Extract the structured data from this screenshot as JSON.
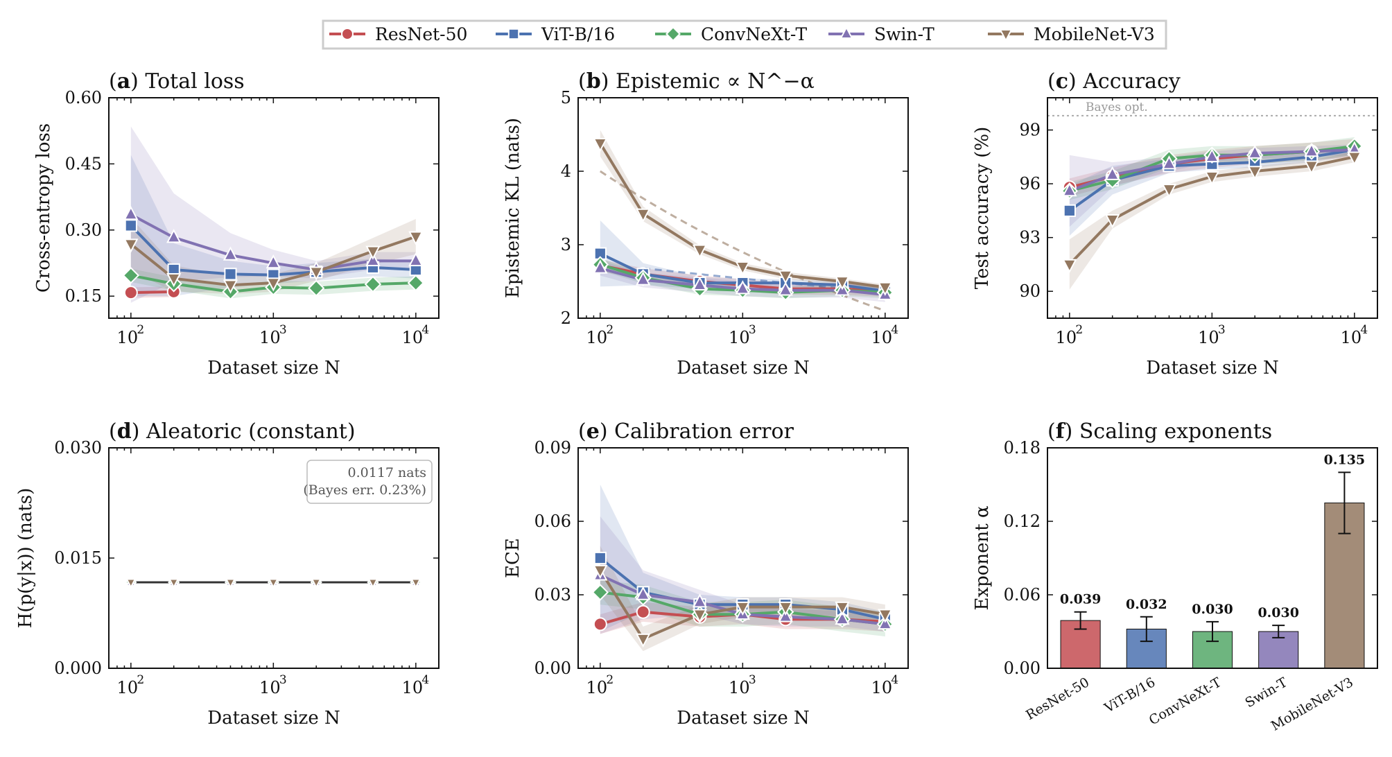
{
  "legend": [
    {
      "name": "ResNet-50",
      "color": "#c44e52",
      "marker": "circle"
    },
    {
      "name": "ViT-B/16",
      "color": "#4c72b0",
      "marker": "square"
    },
    {
      "name": "ConvNeXt-T",
      "color": "#55a868",
      "marker": "diamond"
    },
    {
      "name": "Swin-T",
      "color": "#8172b2",
      "marker": "triangle-up"
    },
    {
      "name": "MobileNet-V3",
      "color": "#937860",
      "marker": "triangle-down"
    }
  ],
  "chart_data": [
    {
      "id": "a",
      "type": "line",
      "letter": "a",
      "title": "Total loss",
      "xlabel": "Dataset size N",
      "ylabel": "Cross-entropy loss",
      "xscale": "log",
      "xlim": [
        70,
        14500
      ],
      "ylim": [
        0.1,
        0.6
      ],
      "yticks": [
        0.15,
        0.3,
        0.45,
        0.6
      ],
      "yticklabels": [
        "0.15",
        "0.30",
        "0.45",
        "0.60"
      ],
      "x": [
        100,
        200,
        500,
        1000,
        2000,
        5000,
        10000
      ],
      "series": [
        {
          "name": "ResNet-50",
          "values": [
            0.158,
            0.16,
            null,
            null,
            null,
            null,
            null
          ],
          "band": 0.012
        },
        {
          "name": "ViT-B/16",
          "values": [
            0.31,
            0.21,
            0.2,
            0.198,
            0.205,
            0.215,
            0.21
          ],
          "band": [
            0.16,
            0.06,
            0.03,
            0.02,
            0.02,
            0.02,
            0.02
          ]
        },
        {
          "name": "ConvNeXt-T",
          "values": [
            0.197,
            0.178,
            0.16,
            0.17,
            0.168,
            0.177,
            0.18
          ],
          "band": 0.015
        },
        {
          "name": "Swin-T",
          "values": [
            0.335,
            0.283,
            0.243,
            0.225,
            0.21,
            0.23,
            0.23
          ],
          "band": [
            0.2,
            0.1,
            0.05,
            0.03,
            0.02,
            0.02,
            0.02
          ]
        },
        {
          "name": "MobileNet-V3",
          "values": [
            0.268,
            0.19,
            0.175,
            0.18,
            0.205,
            0.252,
            0.285
          ],
          "band": [
            0.06,
            0.03,
            0.02,
            0.02,
            0.02,
            0.03,
            0.04
          ]
        }
      ]
    },
    {
      "id": "b",
      "type": "line",
      "letter": "b",
      "title": "Epistemic ∝ N^−α",
      "xlabel": "Dataset size N",
      "ylabel": "Epistemic KL (nats)",
      "xscale": "log",
      "xlim": [
        70,
        14500
      ],
      "ylim": [
        2,
        5
      ],
      "yticks": [
        2,
        3,
        4,
        5
      ],
      "yticklabels": [
        "2",
        "3",
        "4",
        "5"
      ],
      "x": [
        100,
        200,
        500,
        1000,
        2000,
        5000,
        10000
      ],
      "series": [
        {
          "name": "ResNet-50",
          "values": [
            2.72,
            2.6,
            2.5,
            2.45,
            2.4,
            2.4,
            2.37
          ],
          "band": 0.08
        },
        {
          "name": "ViT-B/16",
          "values": [
            2.88,
            2.6,
            2.48,
            2.48,
            2.48,
            2.45,
            2.37
          ],
          "band": [
            0.45,
            0.15,
            0.08,
            0.06,
            0.05,
            0.05,
            0.05
          ]
        },
        {
          "name": "ConvNeXt-T",
          "values": [
            2.73,
            2.55,
            2.4,
            2.38,
            2.35,
            2.38,
            2.35
          ],
          "band": 0.08
        },
        {
          "name": "Swin-T",
          "values": [
            2.68,
            2.52,
            2.45,
            2.4,
            2.38,
            2.38,
            2.32
          ],
          "band": 0.1
        },
        {
          "name": "MobileNet-V3",
          "values": [
            4.38,
            3.42,
            2.93,
            2.7,
            2.58,
            2.5,
            2.42
          ],
          "band": [
            0.18,
            0.1,
            0.06,
            0.05,
            0.05,
            0.04,
            0.04
          ]
        }
      ],
      "fits": [
        {
          "name": "MobileNet-V3 fit",
          "x": [
            100,
            10000
          ],
          "values": [
            4.0,
            2.1
          ]
        },
        {
          "name": "ViT-B/16 fit",
          "x": [
            200,
            10000
          ],
          "values": [
            2.68,
            2.35
          ]
        }
      ]
    },
    {
      "id": "c",
      "type": "line",
      "letter": "c",
      "title": "Accuracy",
      "xlabel": "Dataset size N",
      "ylabel": "Test accuracy (%)",
      "xscale": "log",
      "xlim": [
        70,
        14500
      ],
      "ylim": [
        88.5,
        100.8
      ],
      "yticks": [
        90,
        93,
        96,
        99
      ],
      "yticklabels": [
        "90",
        "93",
        "96",
        "99"
      ],
      "x": [
        100,
        200,
        500,
        1000,
        2000,
        5000,
        10000
      ],
      "series": [
        {
          "name": "ResNet-50",
          "values": [
            95.8,
            96.4,
            97.1,
            97.4,
            97.6,
            97.8,
            98.0
          ],
          "band": 0.5
        },
        {
          "name": "ViT-B/16",
          "values": [
            94.5,
            96.2,
            97.0,
            97.1,
            97.2,
            97.5,
            97.9
          ],
          "band": [
            1.4,
            0.8,
            0.4,
            0.3,
            0.3,
            0.3,
            0.3
          ]
        },
        {
          "name": "ConvNeXt-T",
          "values": [
            95.6,
            96.2,
            97.4,
            97.6,
            97.6,
            97.8,
            98.1
          ],
          "band": 0.5
        },
        {
          "name": "Swin-T",
          "values": [
            95.6,
            96.5,
            97.1,
            97.5,
            97.7,
            97.8,
            97.9
          ],
          "band": [
            2.0,
            0.7,
            0.4,
            0.3,
            0.3,
            0.3,
            0.3
          ]
        },
        {
          "name": "MobileNet-V3",
          "values": [
            91.5,
            94.0,
            95.7,
            96.4,
            96.7,
            97.0,
            97.5
          ],
          "band": [
            1.4,
            0.5,
            0.3,
            0.3,
            0.3,
            0.3,
            0.3
          ]
        }
      ],
      "hline": {
        "y": 99.8,
        "label": "Bayes opt."
      }
    },
    {
      "id": "d",
      "type": "line",
      "letter": "d",
      "title": "Aleatoric (constant)",
      "xlabel": "Dataset size N",
      "ylabel": "H(p(y|x)) (nats)",
      "xscale": "log",
      "xlim": [
        70,
        14500
      ],
      "ylim": [
        0,
        0.03
      ],
      "yticks": [
        0,
        0.015,
        0.03
      ],
      "yticklabels": [
        "0.000",
        "0.015",
        "0.030"
      ],
      "x": [
        100,
        200,
        500,
        1000,
        2000,
        5000,
        10000
      ],
      "series": [
        {
          "name": "ResNet-50",
          "values": [
            0.0117,
            0.0117,
            0.0117,
            0.0117,
            0.0117,
            0.0117,
            0.0117
          ]
        },
        {
          "name": "ViT-B/16",
          "values": [
            0.0117,
            0.0117,
            0.0117,
            0.0117,
            0.0117,
            0.0117,
            0.0117
          ]
        },
        {
          "name": "ConvNeXt-T",
          "values": [
            0.0117,
            0.0117,
            0.0117,
            0.0117,
            0.0117,
            0.0117,
            0.0117
          ]
        },
        {
          "name": "Swin-T",
          "values": [
            0.0117,
            0.0117,
            0.0117,
            0.0117,
            0.0117,
            0.0117,
            0.0117
          ]
        },
        {
          "name": "MobileNet-V3",
          "values": [
            0.0117,
            0.0117,
            0.0117,
            0.0117,
            0.0117,
            0.0117,
            0.0117
          ]
        }
      ],
      "annotation": [
        "0.0117 nats",
        "(Bayes err. 0.23%)"
      ]
    },
    {
      "id": "e",
      "type": "line",
      "letter": "e",
      "title": "Calibration error",
      "xlabel": "Dataset size N",
      "ylabel": "ECE",
      "xscale": "log",
      "xlim": [
        70,
        14500
      ],
      "ylim": [
        0,
        0.09
      ],
      "yticks": [
        0,
        0.03,
        0.06,
        0.09
      ],
      "yticklabels": [
        "0.00",
        "0.03",
        "0.06",
        "0.09"
      ],
      "x": [
        100,
        200,
        500,
        1000,
        2000,
        5000,
        10000
      ],
      "series": [
        {
          "name": "ResNet-50",
          "values": [
            0.018,
            0.023,
            0.021,
            0.022,
            0.02,
            0.02,
            0.019
          ],
          "band": 0.004
        },
        {
          "name": "ViT-B/16",
          "values": [
            0.045,
            0.031,
            0.026,
            0.026,
            0.026,
            0.024,
            0.02
          ],
          "band": [
            0.03,
            0.008,
            0.004,
            0.003,
            0.003,
            0.003,
            0.003
          ]
        },
        {
          "name": "ConvNeXt-T",
          "values": [
            0.031,
            0.029,
            0.022,
            0.022,
            0.023,
            0.02,
            0.018
          ],
          "band": 0.005
        },
        {
          "name": "Swin-T",
          "values": [
            0.038,
            0.03,
            0.027,
            0.022,
            0.021,
            0.02,
            0.018
          ],
          "band": [
            0.024,
            0.01,
            0.005,
            0.004,
            0.004,
            0.003,
            0.003
          ]
        },
        {
          "name": "MobileNet-V3",
          "values": [
            0.04,
            0.012,
            0.022,
            0.025,
            0.025,
            0.025,
            0.022
          ],
          "band": [
            0.01,
            0.005,
            0.004,
            0.004,
            0.004,
            0.004,
            0.004
          ]
        }
      ]
    },
    {
      "id": "f",
      "type": "bar",
      "letter": "f",
      "title": "Scaling exponents",
      "xlabel": "",
      "ylabel": "Exponent α",
      "ylim": [
        0,
        0.18
      ],
      "yticks": [
        0,
        0.06,
        0.12,
        0.18
      ],
      "yticklabels": [
        "0.00",
        "0.06",
        "0.12",
        "0.18"
      ],
      "categories": [
        "ResNet-50",
        "ViT-B/16",
        "ConvNeXt-T",
        "Swin-T",
        "MobileNet-V3"
      ],
      "values": [
        0.039,
        0.032,
        0.03,
        0.03,
        0.135
      ],
      "value_labels": [
        "0.039",
        "0.032",
        "0.030",
        "0.030",
        "0.135"
      ],
      "errors": [
        0.007,
        0.01,
        0.008,
        0.005,
        0.025
      ]
    }
  ],
  "xtick_labels": {
    "p100": "10",
    "p1000": "10",
    "p10000": "10",
    "e2": "2",
    "e3": "3",
    "e4": "4"
  }
}
